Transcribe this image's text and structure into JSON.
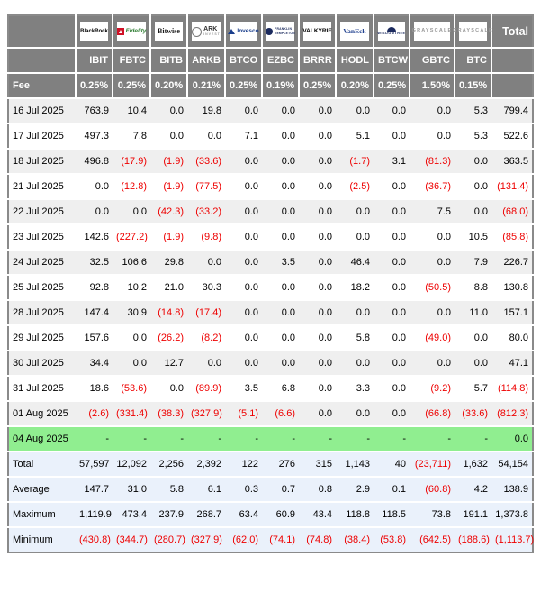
{
  "labels": {
    "fee": "Fee",
    "total": "Total"
  },
  "colors": {
    "header_bg": "#808080",
    "row_alt_bg": "#EFEFEF",
    "row_bg": "#FFFFFF",
    "summary_bg": "#EAF1FB",
    "highlight_bg": "#90EE90",
    "negative": "#EE0000"
  },
  "chart_data": {
    "type": "table",
    "columns": [
      {
        "ticker": "IBIT",
        "fee": "0.25%",
        "logo": {
          "kind": "blackrock",
          "lines": [
            "BlackRock"
          ]
        }
      },
      {
        "ticker": "FBTC",
        "fee": "0.25%",
        "logo": {
          "kind": "fidelity",
          "lines": [
            "Fidelity"
          ]
        }
      },
      {
        "ticker": "BITB",
        "fee": "0.20%",
        "logo": {
          "kind": "bitwise",
          "lines": [
            "Bitwise"
          ]
        }
      },
      {
        "ticker": "ARKB",
        "fee": "0.21%",
        "logo": {
          "kind": "ark",
          "lines": [
            "ARK",
            "INVEST"
          ]
        }
      },
      {
        "ticker": "BTCO",
        "fee": "0.25%",
        "logo": {
          "kind": "invesco",
          "lines": [
            "Invesco"
          ]
        }
      },
      {
        "ticker": "EZBC",
        "fee": "0.19%",
        "logo": {
          "kind": "franklin",
          "lines": [
            "FRANKLIN",
            "TEMPLETON"
          ]
        }
      },
      {
        "ticker": "BRRR",
        "fee": "0.25%",
        "logo": {
          "kind": "valkyrie",
          "lines": [
            "VALKYRIE"
          ]
        }
      },
      {
        "ticker": "HODL",
        "fee": "0.20%",
        "logo": {
          "kind": "vaneck",
          "lines": [
            "VanEck"
          ]
        }
      },
      {
        "ticker": "BTCW",
        "fee": "0.25%",
        "logo": {
          "kind": "wisdomtree",
          "lines": [
            "WISDOMTREE"
          ]
        }
      },
      {
        "ticker": "GBTC",
        "fee": "1.50%",
        "logo": {
          "kind": "grayscale",
          "lines": [
            "GRAYSCALE"
          ]
        }
      },
      {
        "ticker": "BTC",
        "fee": "0.15%",
        "logo": {
          "kind": "grayscale",
          "lines": [
            "GRAYSCALE"
          ]
        }
      }
    ],
    "rows": [
      {
        "date": "16 Jul 2025",
        "values": [
          "763.9",
          "10.4",
          "0.0",
          "19.8",
          "0.0",
          "0.0",
          "0.0",
          "0.0",
          "0.0",
          "0.0",
          "5.3",
          "799.4"
        ]
      },
      {
        "date": "17 Jul 2025",
        "values": [
          "497.3",
          "7.8",
          "0.0",
          "0.0",
          "7.1",
          "0.0",
          "0.0",
          "5.1",
          "0.0",
          "0.0",
          "5.3",
          "522.6"
        ]
      },
      {
        "date": "18 Jul 2025",
        "values": [
          "496.8",
          "(17.9)",
          "(1.9)",
          "(33.6)",
          "0.0",
          "0.0",
          "0.0",
          "(1.7)",
          "3.1",
          "(81.3)",
          "0.0",
          "363.5"
        ]
      },
      {
        "date": "21 Jul 2025",
        "values": [
          "0.0",
          "(12.8)",
          "(1.9)",
          "(77.5)",
          "0.0",
          "0.0",
          "0.0",
          "(2.5)",
          "0.0",
          "(36.7)",
          "0.0",
          "(131.4)"
        ]
      },
      {
        "date": "22 Jul 2025",
        "values": [
          "0.0",
          "0.0",
          "(42.3)",
          "(33.2)",
          "0.0",
          "0.0",
          "0.0",
          "0.0",
          "0.0",
          "7.5",
          "0.0",
          "(68.0)"
        ]
      },
      {
        "date": "23 Jul 2025",
        "values": [
          "142.6",
          "(227.2)",
          "(1.9)",
          "(9.8)",
          "0.0",
          "0.0",
          "0.0",
          "0.0",
          "0.0",
          "0.0",
          "10.5",
          "(85.8)"
        ]
      },
      {
        "date": "24 Jul 2025",
        "values": [
          "32.5",
          "106.6",
          "29.8",
          "0.0",
          "0.0",
          "3.5",
          "0.0",
          "46.4",
          "0.0",
          "0.0",
          "7.9",
          "226.7"
        ]
      },
      {
        "date": "25 Jul 2025",
        "values": [
          "92.8",
          "10.2",
          "21.0",
          "30.3",
          "0.0",
          "0.0",
          "0.0",
          "18.2",
          "0.0",
          "(50.5)",
          "8.8",
          "130.8"
        ]
      },
      {
        "date": "28 Jul 2025",
        "values": [
          "147.4",
          "30.9",
          "(14.8)",
          "(17.4)",
          "0.0",
          "0.0",
          "0.0",
          "0.0",
          "0.0",
          "0.0",
          "11.0",
          "157.1"
        ]
      },
      {
        "date": "29 Jul 2025",
        "values": [
          "157.6",
          "0.0",
          "(26.2)",
          "(8.2)",
          "0.0",
          "0.0",
          "0.0",
          "5.8",
          "0.0",
          "(49.0)",
          "0.0",
          "80.0"
        ]
      },
      {
        "date": "30 Jul 2025",
        "values": [
          "34.4",
          "0.0",
          "12.7",
          "0.0",
          "0.0",
          "0.0",
          "0.0",
          "0.0",
          "0.0",
          "0.0",
          "0.0",
          "47.1"
        ]
      },
      {
        "date": "31 Jul 2025",
        "values": [
          "18.6",
          "(53.6)",
          "0.0",
          "(89.9)",
          "3.5",
          "6.8",
          "0.0",
          "3.3",
          "0.0",
          "(9.2)",
          "5.7",
          "(114.8)"
        ]
      },
      {
        "date": "01 Aug 2025",
        "values": [
          "(2.6)",
          "(331.4)",
          "(38.3)",
          "(327.9)",
          "(5.1)",
          "(6.6)",
          "0.0",
          "0.0",
          "0.0",
          "(66.8)",
          "(33.6)",
          "(812.3)"
        ]
      },
      {
        "date": "04 Aug 2025",
        "highlight": true,
        "values": [
          "-",
          "-",
          "-",
          "-",
          "-",
          "-",
          "-",
          "-",
          "-",
          "-",
          "-",
          "0.0"
        ]
      }
    ],
    "summary_rows": [
      {
        "label": "Total",
        "values": [
          "57,597",
          "12,092",
          "2,256",
          "2,392",
          "122",
          "276",
          "315",
          "1,143",
          "40",
          "(23,711)",
          "1,632",
          "54,154"
        ]
      },
      {
        "label": "Average",
        "values": [
          "147.7",
          "31.0",
          "5.8",
          "6.1",
          "0.3",
          "0.7",
          "0.8",
          "2.9",
          "0.1",
          "(60.8)",
          "4.2",
          "138.9"
        ]
      },
      {
        "label": "Maximum",
        "values": [
          "1,119.9",
          "473.4",
          "237.9",
          "268.7",
          "63.4",
          "60.9",
          "43.4",
          "118.8",
          "118.5",
          "73.8",
          "191.1",
          "1,373.8"
        ]
      },
      {
        "label": "Minimum",
        "values": [
          "(430.8)",
          "(344.7)",
          "(280.7)",
          "(327.9)",
          "(62.0)",
          "(74.1)",
          "(74.8)",
          "(38.4)",
          "(53.8)",
          "(642.5)",
          "(188.6)",
          "(1,113.7)"
        ]
      }
    ]
  }
}
